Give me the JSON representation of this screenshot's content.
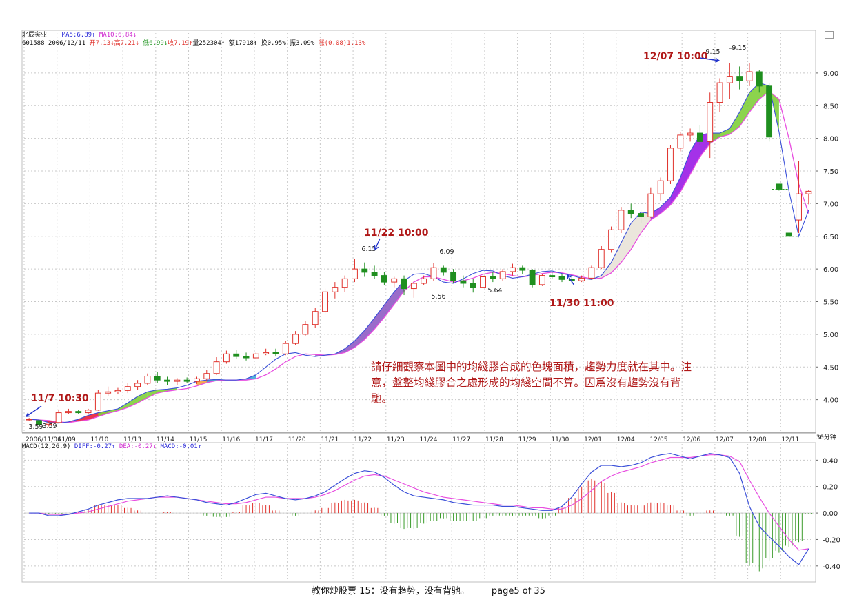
{
  "header": {
    "stock_name": "北辰实业",
    "ma5": "MA5:6.89↑",
    "ma10": "MA10:6.84↓",
    "code_date": "601588 2006/12/11",
    "open": "开7.13↓",
    "high": "高7.21↓",
    "low": "低6.99↓",
    "close": "收7.19↑",
    "volume": "量252304↑",
    "amount": "额17918↑",
    "turnover": "换0.95%",
    "amplitude": "振3.09%",
    "change": "涨(0.08)1.13%"
  },
  "macd_header": {
    "label": "MACD(12,26,9)",
    "diff": "DIFF:-0.27↑",
    "dea": "DEA:-0.27↓",
    "macd": "MACD:-0.01↑"
  },
  "period_label": "30分钟",
  "corner_icon": "window-restore-icon",
  "note": "請仔細觀察本圖中的均綫膠合成的色塊面積，趨勢力度就在其中。注意，盤整均綫膠合之處形成的均綫空間不算。因爲沒有趨勢沒有背馳。",
  "footer": {
    "title": "教你炒股票 15：没有趋势，没有背驰。",
    "page": "page5 of 35"
  },
  "colors": {
    "up_candle": "#e0312b",
    "down_candle": "#1f8f1f",
    "ma5": "#3a4fd8",
    "ma10": "#e84de0",
    "annotation": "#b01818",
    "arrow": "#2233cc"
  },
  "chart_data": [
    {
      "type": "candlestick",
      "title": "",
      "x_tick_labels": [
        "2006/11/06",
        "11/09",
        "11/10",
        "11/13",
        "11/14",
        "11/15",
        "11/16",
        "11/17",
        "11/20",
        "11/21",
        "11/22",
        "11/23",
        "11/24",
        "11/27",
        "11/28",
        "11/29",
        "11/30",
        "12/01",
        "12/04",
        "12/05",
        "12/06",
        "12/07",
        "12/08",
        "12/11"
      ],
      "y_ticks": [
        4.0,
        4.5,
        5.0,
        5.5,
        6.0,
        6.5,
        7.0,
        7.5,
        8.0,
        8.5,
        9.0
      ],
      "ylim": [
        3.5,
        9.4
      ],
      "grid": true,
      "series": [
        {
          "name": "MA5",
          "values": [
            3.7,
            3.69,
            3.65,
            3.64,
            3.66,
            3.7,
            3.76,
            3.8,
            3.83,
            3.86,
            3.95,
            4.05,
            4.12,
            4.15,
            4.16,
            4.18,
            4.22,
            4.28,
            4.3,
            4.31,
            4.3,
            4.3,
            4.32,
            4.38,
            4.5,
            4.62,
            4.7,
            4.72,
            4.68,
            4.66,
            4.68,
            4.7,
            4.78,
            4.9,
            5.06,
            5.25,
            5.45,
            5.65,
            5.82,
            5.92,
            5.93,
            5.88,
            5.8,
            5.78,
            5.85,
            5.93,
            5.98,
            5.97,
            5.9,
            5.86,
            5.88,
            5.92,
            5.96,
            5.97,
            5.93,
            5.9,
            5.86,
            5.84,
            5.9,
            6.1,
            6.4,
            6.7,
            6.87,
            6.85,
            6.95,
            7.1,
            7.4,
            7.8,
            8.05,
            8.08,
            8.08,
            8.15,
            8.4,
            8.7,
            8.85,
            8.8,
            8.1,
            7.2,
            6.5,
            6.9
          ]
        },
        {
          "name": "MA10",
          "values": [
            3.7,
            3.69,
            3.68,
            3.66,
            3.65,
            3.67,
            3.69,
            3.74,
            3.79,
            3.83,
            3.88,
            3.95,
            4.03,
            4.1,
            4.13,
            4.15,
            4.17,
            4.21,
            4.26,
            4.29,
            4.3,
            4.3,
            4.3,
            4.32,
            4.38,
            4.47,
            4.58,
            4.66,
            4.7,
            4.69,
            4.68,
            4.69,
            4.72,
            4.8,
            4.92,
            5.08,
            5.26,
            5.46,
            5.66,
            5.8,
            5.88,
            5.88,
            5.84,
            5.8,
            5.82,
            5.86,
            5.92,
            5.95,
            5.93,
            5.9,
            5.88,
            5.9,
            5.93,
            5.95,
            5.94,
            5.91,
            5.88,
            5.85,
            5.86,
            5.94,
            6.1,
            6.3,
            6.55,
            6.75,
            6.85,
            6.98,
            7.18,
            7.45,
            7.72,
            7.92,
            8.02,
            8.06,
            8.18,
            8.4,
            8.6,
            8.72,
            8.6,
            8.0,
            7.3,
            6.85
          ]
        },
        {
          "name": "candles_ohlc",
          "values": [
            [
              3.7,
              3.72,
              3.68,
              3.7
            ],
            [
              3.68,
              3.7,
              3.59,
              3.62
            ],
            [
              3.62,
              3.66,
              3.59,
              3.64
            ],
            [
              3.65,
              3.85,
              3.64,
              3.8
            ],
            [
              3.8,
              3.86,
              3.78,
              3.82
            ],
            [
              3.82,
              3.84,
              3.78,
              3.8
            ],
            [
              3.8,
              3.86,
              3.78,
              3.84
            ],
            [
              3.84,
              4.15,
              3.83,
              4.1
            ],
            [
              4.1,
              4.2,
              4.05,
              4.12
            ],
            [
              4.12,
              4.18,
              4.08,
              4.14
            ],
            [
              4.14,
              4.25,
              4.1,
              4.2
            ],
            [
              4.2,
              4.3,
              4.15,
              4.25
            ],
            [
              4.25,
              4.4,
              4.22,
              4.36
            ],
            [
              4.36,
              4.42,
              4.25,
              4.3
            ],
            [
              4.3,
              4.35,
              4.22,
              4.28
            ],
            [
              4.28,
              4.33,
              4.22,
              4.3
            ],
            [
              4.3,
              4.34,
              4.25,
              4.28
            ],
            [
              4.28,
              4.35,
              4.24,
              4.32
            ],
            [
              4.32,
              4.45,
              4.28,
              4.4
            ],
            [
              4.4,
              4.65,
              4.38,
              4.58
            ],
            [
              4.58,
              4.75,
              4.55,
              4.7
            ],
            [
              4.7,
              4.76,
              4.62,
              4.66
            ],
            [
              4.66,
              4.72,
              4.6,
              4.64
            ],
            [
              4.64,
              4.72,
              4.62,
              4.7
            ],
            [
              4.7,
              4.78,
              4.68,
              4.72
            ],
            [
              4.72,
              4.78,
              4.66,
              4.7
            ],
            [
              4.7,
              4.9,
              4.68,
              4.86
            ],
            [
              4.86,
              5.05,
              4.84,
              5.0
            ],
            [
              5.0,
              5.2,
              4.98,
              5.15
            ],
            [
              5.15,
              5.4,
              5.1,
              5.35
            ],
            [
              5.35,
              5.7,
              5.3,
              5.65
            ],
            [
              5.65,
              5.8,
              5.55,
              5.72
            ],
            [
              5.72,
              5.9,
              5.65,
              5.85
            ],
            [
              5.85,
              6.15,
              5.8,
              6.0
            ],
            [
              6.0,
              6.1,
              5.88,
              5.95
            ],
            [
              5.95,
              6.05,
              5.85,
              5.9
            ],
            [
              5.9,
              5.95,
              5.75,
              5.8
            ],
            [
              5.8,
              5.88,
              5.72,
              5.85
            ],
            [
              5.85,
              5.9,
              5.6,
              5.7
            ],
            [
              5.7,
              5.82,
              5.56,
              5.78
            ],
            [
              5.78,
              5.9,
              5.75,
              5.85
            ],
            [
              5.85,
              6.09,
              5.82,
              6.02
            ],
            [
              6.02,
              6.05,
              5.9,
              5.95
            ],
            [
              5.95,
              6.0,
              5.78,
              5.82
            ],
            [
              5.82,
              5.9,
              5.72,
              5.78
            ],
            [
              5.78,
              5.85,
              5.64,
              5.72
            ],
            [
              5.72,
              5.92,
              5.7,
              5.88
            ],
            [
              5.88,
              5.95,
              5.8,
              5.85
            ],
            [
              5.85,
              6.0,
              5.82,
              5.96
            ],
            [
              5.96,
              6.08,
              5.9,
              6.02
            ],
            [
              6.02,
              6.05,
              5.92,
              5.98
            ],
            [
              5.98,
              6.0,
              5.72,
              5.76
            ],
            [
              5.76,
              5.92,
              5.74,
              5.9
            ],
            [
              5.9,
              5.95,
              5.85,
              5.88
            ],
            [
              5.88,
              5.92,
              5.8,
              5.84
            ],
            [
              5.84,
              5.88,
              5.78,
              5.82
            ],
            [
              5.82,
              5.9,
              5.8,
              5.86
            ],
            [
              5.86,
              6.05,
              5.84,
              6.02
            ],
            [
              6.02,
              6.35,
              6.0,
              6.3
            ],
            [
              6.3,
              6.65,
              6.25,
              6.6
            ],
            [
              6.6,
              6.95,
              6.55,
              6.9
            ],
            [
              6.9,
              7.0,
              6.78,
              6.85
            ],
            [
              6.85,
              6.9,
              6.7,
              6.8
            ],
            [
              6.8,
              7.25,
              6.78,
              7.15
            ],
            [
              7.15,
              7.4,
              7.05,
              7.35
            ],
            [
              7.35,
              7.9,
              7.3,
              7.85
            ],
            [
              7.85,
              8.1,
              7.8,
              8.05
            ],
            [
              8.05,
              8.15,
              7.95,
              8.08
            ],
            [
              8.08,
              8.2,
              7.9,
              7.95
            ],
            [
              7.95,
              8.7,
              7.7,
              8.55
            ],
            [
              8.55,
              8.92,
              8.4,
              8.85
            ],
            [
              8.85,
              9.15,
              8.6,
              8.95
            ],
            [
              8.95,
              9.1,
              8.75,
              8.88
            ],
            [
              8.88,
              9.15,
              8.8,
              9.02
            ],
            [
              9.02,
              9.05,
              8.7,
              8.8
            ],
            [
              8.8,
              8.85,
              7.95,
              8.02
            ],
            [
              7.3,
              7.3,
              7.2,
              7.22
            ],
            [
              6.55,
              6.55,
              6.5,
              6.5
            ],
            [
              6.75,
              7.65,
              6.55,
              7.15
            ],
            [
              7.15,
              7.21,
              6.99,
              7.19
            ]
          ]
        }
      ],
      "point_labels": [
        {
          "text": "3.59",
          "value": 3.59
        },
        {
          "text": "3.59",
          "value": 3.59
        },
        {
          "text": "6.15",
          "value": 6.15
        },
        {
          "text": "5.56",
          "value": 5.56
        },
        {
          "text": "6.09",
          "value": 6.09
        },
        {
          "text": "5.64",
          "value": 5.64
        },
        {
          "text": "9.15",
          "value": 9.15
        },
        {
          "text": "9.15",
          "value": 9.15
        }
      ],
      "annotations": [
        "11/7 10:30",
        "11/22 10:00",
        "11/30 11:00",
        "12/07 10:00"
      ]
    },
    {
      "type": "bar",
      "title": "MACD(12,26,9)",
      "y_ticks": [
        0.4,
        0.2,
        0.0,
        -0.2,
        -0.4
      ],
      "ylim": [
        -0.5,
        0.48
      ],
      "series": [
        {
          "name": "DIFF",
          "values": [
            0.0,
            0.0,
            -0.02,
            -0.02,
            -0.01,
            0.01,
            0.03,
            0.06,
            0.08,
            0.1,
            0.11,
            0.11,
            0.11,
            0.12,
            0.13,
            0.12,
            0.11,
            0.1,
            0.08,
            0.07,
            0.06,
            0.08,
            0.11,
            0.14,
            0.15,
            0.13,
            0.11,
            0.1,
            0.11,
            0.13,
            0.16,
            0.21,
            0.26,
            0.3,
            0.32,
            0.31,
            0.27,
            0.21,
            0.16,
            0.13,
            0.12,
            0.11,
            0.1,
            0.08,
            0.07,
            0.06,
            0.06,
            0.06,
            0.05,
            0.05,
            0.04,
            0.03,
            0.02,
            0.02,
            0.05,
            0.12,
            0.22,
            0.31,
            0.36,
            0.36,
            0.35,
            0.36,
            0.38,
            0.42,
            0.44,
            0.45,
            0.43,
            0.41,
            0.43,
            0.45,
            0.44,
            0.42,
            0.3,
            0.05,
            -0.1,
            -0.18,
            -0.25,
            -0.33,
            -0.39,
            -0.27
          ]
        },
        {
          "name": "DEA",
          "values": [
            0.0,
            0.0,
            -0.01,
            -0.01,
            -0.01,
            0.0,
            0.01,
            0.03,
            0.05,
            0.07,
            0.09,
            0.1,
            0.11,
            0.12,
            0.12,
            0.12,
            0.11,
            0.1,
            0.09,
            0.08,
            0.07,
            0.07,
            0.08,
            0.1,
            0.12,
            0.12,
            0.11,
            0.11,
            0.11,
            0.12,
            0.14,
            0.17,
            0.21,
            0.25,
            0.28,
            0.29,
            0.28,
            0.25,
            0.22,
            0.19,
            0.16,
            0.14,
            0.12,
            0.11,
            0.1,
            0.09,
            0.08,
            0.07,
            0.06,
            0.06,
            0.05,
            0.04,
            0.04,
            0.03,
            0.03,
            0.06,
            0.11,
            0.17,
            0.24,
            0.28,
            0.31,
            0.33,
            0.35,
            0.38,
            0.4,
            0.42,
            0.42,
            0.42,
            0.43,
            0.44,
            0.44,
            0.43,
            0.39,
            0.25,
            0.12,
            0.0,
            -0.1,
            -0.2,
            -0.28,
            -0.27
          ]
        },
        {
          "name": "MACD",
          "values": [
            0.0,
            0.0,
            -0.01,
            -0.01,
            0.0,
            0.01,
            0.03,
            0.06,
            0.06,
            0.06,
            0.04,
            0.02,
            0.0,
            0.0,
            0.01,
            0.0,
            0.0,
            0.0,
            -0.02,
            -0.03,
            -0.03,
            0.01,
            0.06,
            0.08,
            0.06,
            0.02,
            0.0,
            -0.02,
            0.0,
            0.02,
            0.04,
            0.08,
            0.1,
            0.1,
            0.08,
            0.04,
            -0.02,
            -0.08,
            -0.12,
            -0.12,
            -0.08,
            -0.06,
            -0.04,
            -0.06,
            -0.06,
            -0.06,
            -0.04,
            -0.02,
            -0.02,
            -0.02,
            -0.02,
            -0.02,
            -0.04,
            -0.02,
            0.04,
            0.12,
            0.2,
            0.26,
            0.24,
            0.16,
            0.08,
            0.06,
            0.06,
            0.08,
            0.08,
            0.06,
            0.02,
            -0.02,
            0.0,
            0.02,
            0.0,
            -0.02,
            -0.18,
            -0.4,
            -0.44,
            -0.36,
            -0.3,
            -0.26,
            -0.22,
            -0.01
          ]
        }
      ]
    }
  ]
}
